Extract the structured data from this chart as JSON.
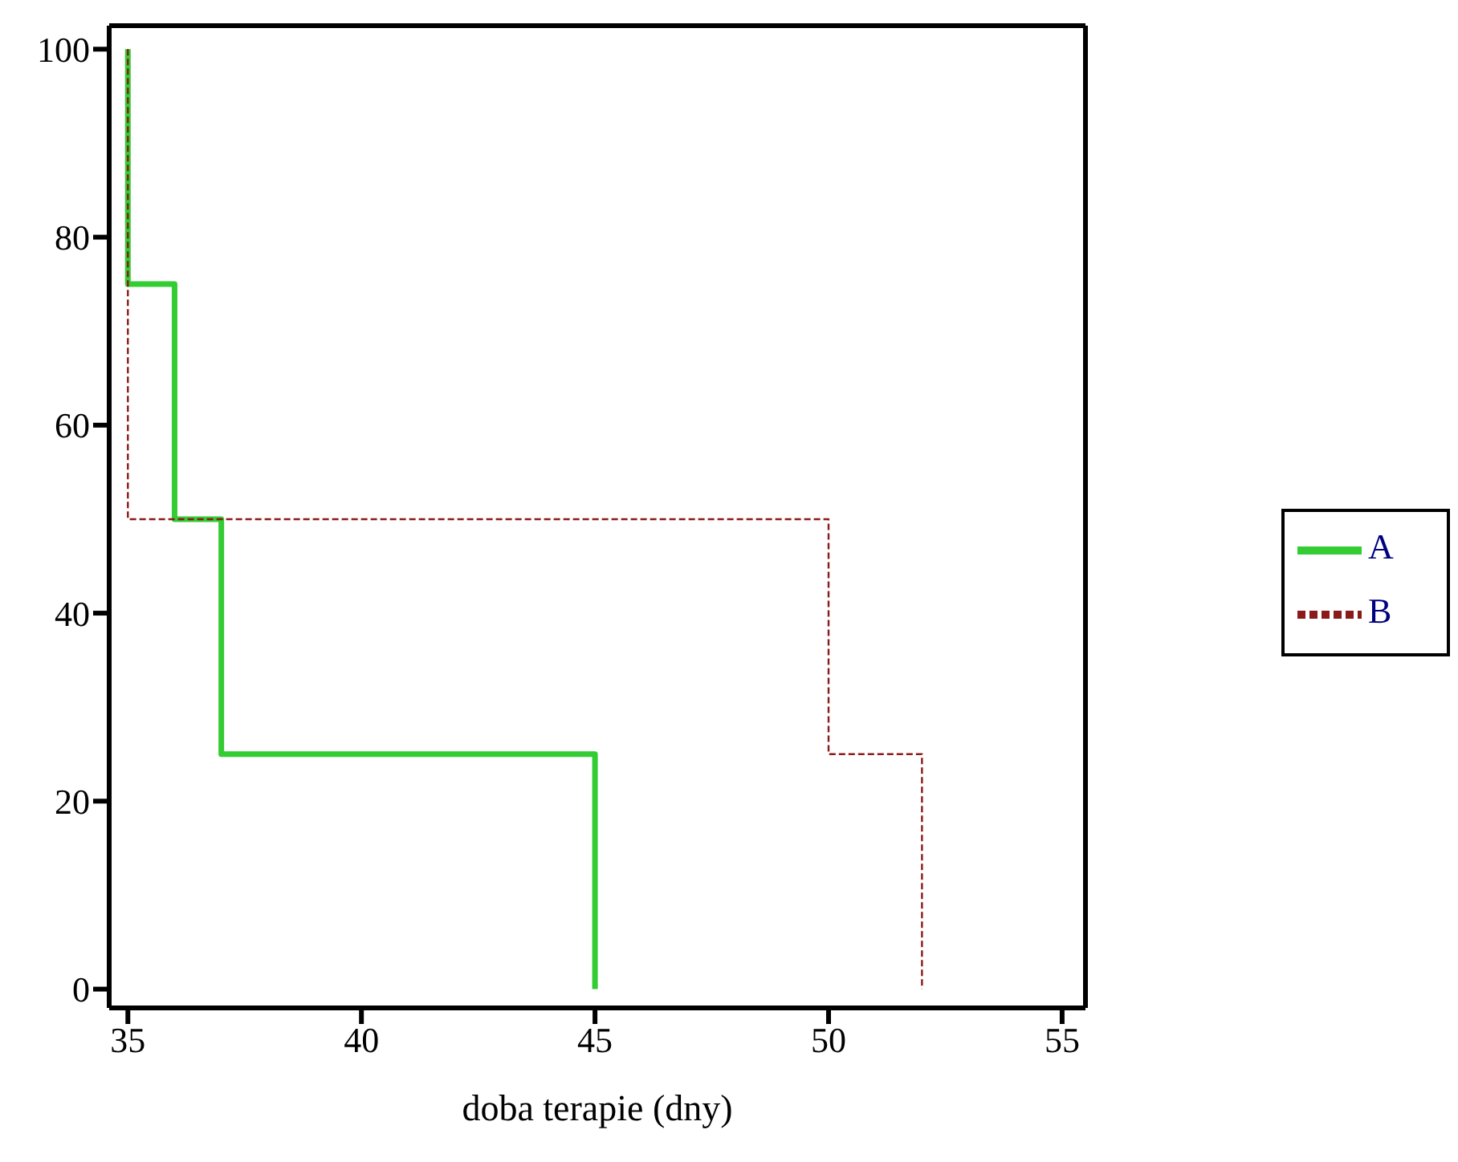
{
  "chart_data": {
    "type": "step",
    "xlabel": "doba terapie (dny)",
    "xlim": [
      34.6,
      55.5
    ],
    "xticks": [
      35,
      40,
      45,
      50,
      55
    ],
    "ylim": [
      -2,
      102.5
    ],
    "yticks": [
      0,
      20,
      40,
      60,
      80,
      100
    ],
    "legend": "right",
    "series": [
      {
        "name": "A",
        "color": "#33cc33",
        "line_style": "solid",
        "x": [
          35,
          35,
          36,
          37,
          45
        ],
        "values": [
          100,
          75,
          50,
          25,
          0
        ]
      },
      {
        "name": "B",
        "color": "#8b1a1a",
        "line_style": "dashed",
        "x": [
          35,
          35,
          50,
          52
        ],
        "values": [
          100,
          50,
          25,
          0
        ]
      }
    ]
  }
}
